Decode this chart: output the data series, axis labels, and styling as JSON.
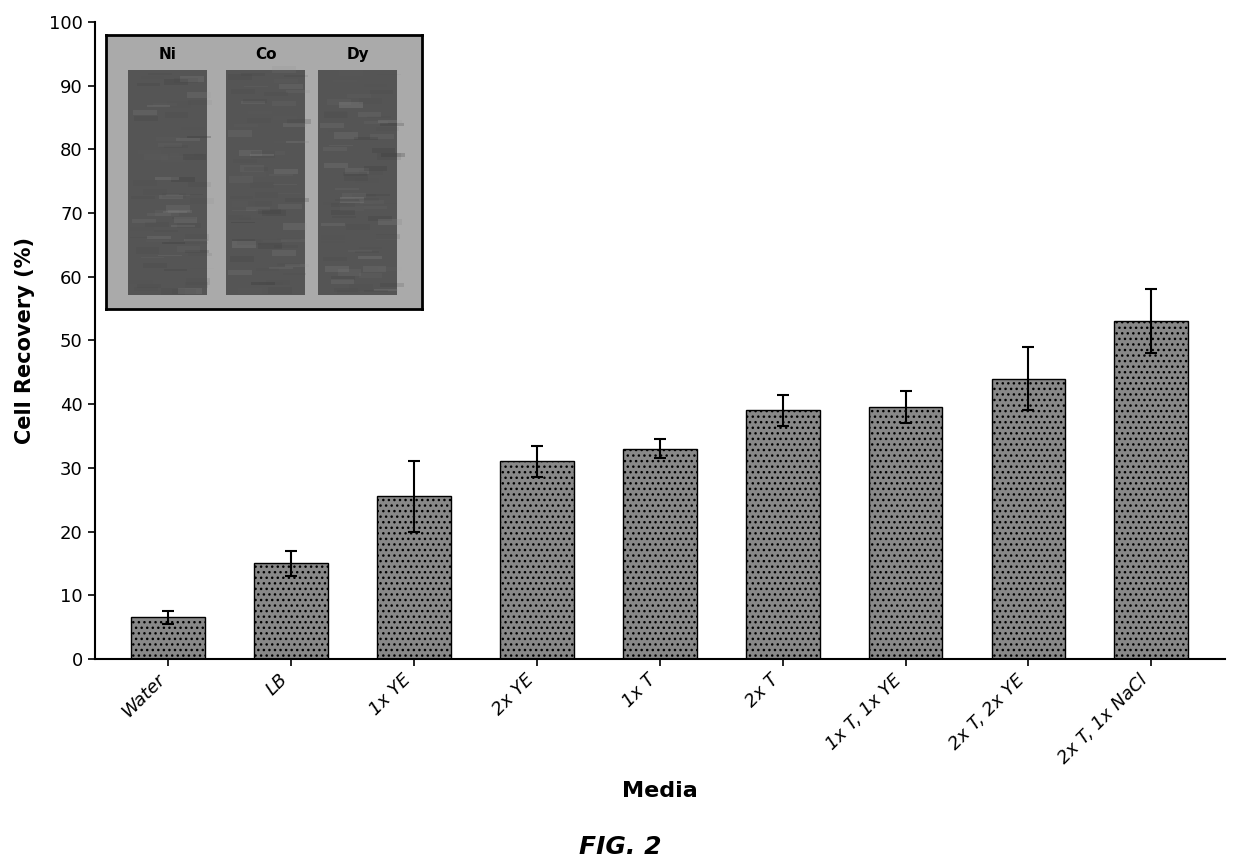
{
  "categories": [
    "Water",
    "LB",
    "1x YE",
    "2x YE",
    "1x T",
    "2x T",
    "1x T, 1x YE",
    "2x T, 2x YE",
    "2x T, 1x NaCl"
  ],
  "values": [
    6.5,
    15.0,
    25.5,
    31.0,
    33.0,
    39.0,
    39.5,
    44.0,
    53.0
  ],
  "errors": [
    1.0,
    2.0,
    5.5,
    2.5,
    1.5,
    2.5,
    2.5,
    5.0,
    5.0
  ],
  "bar_color": "#888888",
  "bar_edgecolor": "#000000",
  "ylabel": "Cell Recovery (%)",
  "xlabel": "Media",
  "fig_title": "FIG. 2",
  "ylim": [
    0,
    100
  ],
  "yticks": [
    0,
    10,
    20,
    30,
    40,
    50,
    60,
    70,
    80,
    90,
    100
  ],
  "inset_labels": [
    "Ni",
    "Co",
    "Dy"
  ],
  "background_color": "#ffffff",
  "fig_width": 12.4,
  "fig_height": 8.68,
  "inset_bg_color": "#aaaaaa",
  "inset_col_color": "#555555",
  "inset_border_color": "#000000"
}
